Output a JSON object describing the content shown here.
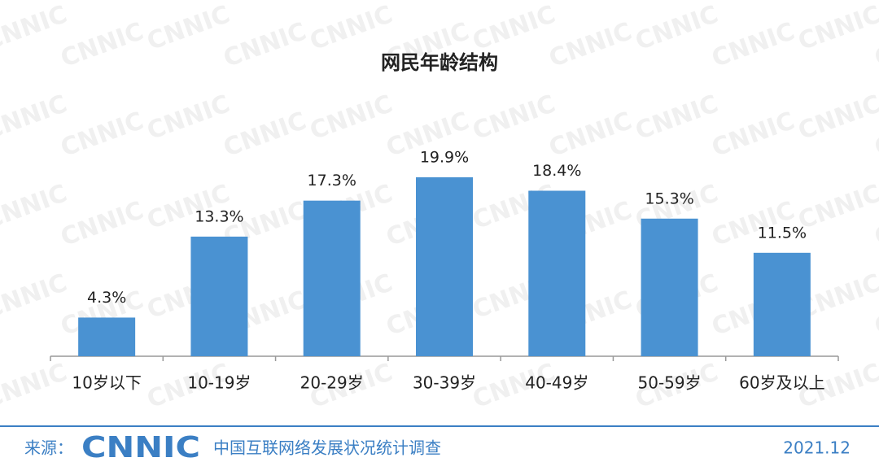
{
  "chart_data": {
    "type": "bar",
    "title": "网民年龄结构",
    "categories": [
      "10岁以下",
      "10-19岁",
      "20-29岁",
      "30-39岁",
      "40-49岁",
      "50-59岁",
      "60岁及以上"
    ],
    "values": [
      4.3,
      13.3,
      17.3,
      19.9,
      18.4,
      15.3,
      11.5
    ],
    "value_labels": [
      "4.3%",
      "13.3%",
      "17.3%",
      "19.9%",
      "18.4%",
      "15.3%",
      "11.5%"
    ],
    "color": "#4a92d2"
  },
  "footer": {
    "source": "来源：",
    "logo": "CNNIC",
    "survey": "中国互联网络发展状况统计调查",
    "date": "2021.12"
  }
}
